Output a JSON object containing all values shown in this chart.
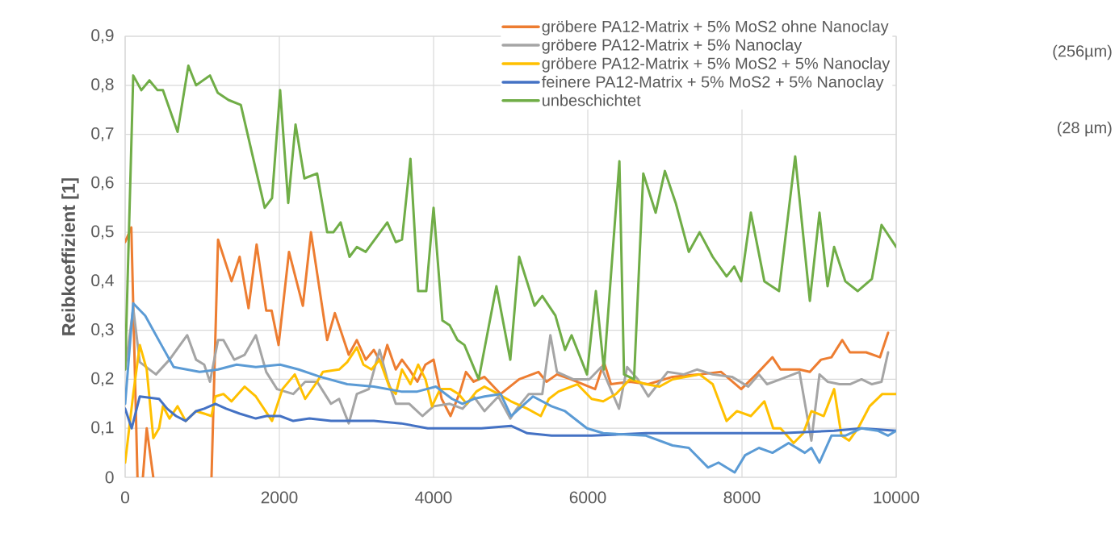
{
  "chart_data": {
    "type": "line",
    "ylabel": "Reibkoeffizient [1]",
    "xlim": [
      0,
      10000
    ],
    "xticks": [
      0,
      2000,
      4000,
      6000,
      8000,
      10000
    ],
    "ylim": [
      0,
      0.9
    ],
    "yticks": [
      {
        "value": 0,
        "label": "0"
      },
      {
        "value": 0.1,
        "label": "0,1"
      },
      {
        "value": 0.2,
        "label": "0,2"
      },
      {
        "value": 0.3,
        "label": "0,3"
      },
      {
        "value": 0.4,
        "label": "0,4"
      },
      {
        "value": 0.5,
        "label": "0,5"
      },
      {
        "value": 0.6,
        "label": "0,6"
      },
      {
        "value": 0.7,
        "label": "0,7"
      },
      {
        "value": 0.8,
        "label": "0,8"
      },
      {
        "value": 0.9,
        "label": "0,9"
      }
    ],
    "grid": true,
    "legend": "top right",
    "annotations": [
      "(256µm)",
      "(28 µm)"
    ],
    "series": [
      {
        "name": "gröbere PA12-Matrix + 5% MoS2 ohne Nanoclay",
        "color": "#ed7d31",
        "x": [
          0,
          80,
          160,
          200,
          230,
          280,
          365,
          700,
          1120,
          1205,
          1380,
          1485,
          1600,
          1705,
          1830,
          1900,
          1990,
          2125,
          2305,
          2410,
          2620,
          2720,
          2900,
          3005,
          3120,
          3225,
          3330,
          3400,
          3510,
          3590,
          3685,
          3790,
          3895,
          4000,
          4105,
          4220,
          4345,
          4420,
          4520,
          4660,
          4870,
          5110,
          5360,
          5465,
          5600,
          5780,
          6095,
          6210,
          6300,
          6545,
          6785,
          7100,
          7450,
          7730,
          7990,
          8185,
          8395,
          8500,
          8745,
          8880,
          9025,
          9160,
          9300,
          9400,
          9610,
          9790,
          9895
        ],
        "values": [
          0.48,
          0.51,
          0,
          null,
          0,
          0.1,
          0,
          null,
          0,
          0.485,
          0.4,
          0.45,
          0.345,
          0.475,
          0.34,
          0.34,
          0.27,
          0.46,
          0.35,
          0.5,
          0.28,
          0.335,
          0.25,
          0.28,
          0.24,
          0.26,
          0.23,
          0.27,
          0.22,
          0.24,
          0.22,
          0.195,
          0.23,
          0.24,
          0.16,
          0.125,
          0.175,
          0.215,
          0.195,
          0.205,
          0.17,
          0.2,
          0.215,
          0.195,
          0.21,
          0.2,
          0.18,
          0.235,
          0.19,
          0.195,
          0.19,
          0.205,
          0.21,
          0.215,
          0.18,
          0.21,
          0.245,
          0.22,
          0.22,
          0.215,
          0.24,
          0.245,
          0.28,
          0.255,
          0.255,
          0.245,
          0.295
        ]
      },
      {
        "name": "gröbere PA12-Matrix + 5% Nanoclay",
        "color": "#a5a5a5",
        "x": [
          0,
          105,
          190,
          400,
          575,
          805,
          920,
          1025,
          1100,
          1205,
          1275,
          1415,
          1550,
          1695,
          1830,
          1970,
          2180,
          2335,
          2490,
          2670,
          2775,
          2900,
          3005,
          3160,
          3300,
          3400,
          3510,
          3685,
          3855,
          4000,
          4210,
          4375,
          4520,
          4660,
          4840,
          4995,
          5080,
          5235,
          5410,
          5515,
          5600,
          5810,
          6020,
          6175,
          6405,
          6510,
          6650,
          6785,
          7035,
          7245,
          7415,
          7620,
          7870,
          8080,
          8220,
          8325,
          8500,
          8745,
          8900,
          9005,
          9110,
          9265,
          9400,
          9550,
          9685,
          9810,
          9895
        ],
        "values": [
          0.22,
          0.345,
          0.235,
          0.21,
          0.24,
          0.29,
          0.24,
          0.23,
          0.195,
          0.28,
          0.28,
          0.24,
          0.25,
          0.29,
          0.215,
          0.18,
          0.17,
          0.195,
          0.195,
          0.15,
          0.16,
          0.11,
          0.17,
          0.18,
          0.26,
          0.2,
          0.15,
          0.15,
          0.125,
          0.145,
          0.15,
          0.14,
          0.165,
          0.135,
          0.165,
          0.12,
          0.14,
          0.17,
          0.17,
          0.29,
          0.215,
          0.2,
          0.2,
          0.225,
          0.14,
          0.225,
          0.2,
          0.165,
          0.215,
          0.21,
          0.22,
          0.21,
          0.205,
          0.185,
          0.21,
          0.19,
          0.2,
          0.215,
          0.075,
          0.21,
          0.195,
          0.19,
          0.19,
          0.2,
          0.19,
          0.195,
          0.255
        ]
      },
      {
        "name": "gröbere PA12-Matrix + 5% MoS2 + 5% Nanoclay",
        "color": "#ffc000",
        "x": [
          0,
          105,
          190,
          280,
          365,
          440,
          490,
          575,
          680,
          785,
          920,
          1025,
          1120,
          1170,
          1275,
          1380,
          1550,
          1695,
          1800,
          1905,
          2040,
          2200,
          2335,
          2490,
          2565,
          2775,
          2880,
          3005,
          3090,
          3195,
          3300,
          3425,
          3510,
          3590,
          3700,
          3800,
          3895,
          3980,
          4085,
          4220,
          4325,
          4430,
          4555,
          4660,
          4840,
          5005,
          5215,
          5390,
          5495,
          5620,
          5865,
          6050,
          6200,
          6365,
          6545,
          6755,
          6930,
          7100,
          7450,
          7620,
          7800,
          7935,
          8115,
          8290,
          8405,
          8500,
          8670,
          8795,
          8900,
          9060,
          9195,
          9290,
          9390,
          9505,
          9655,
          9820,
          10000
        ],
        "values": [
          0.03,
          0.17,
          0.27,
          0.22,
          0.08,
          0.1,
          0.145,
          0.12,
          0.145,
          0.115,
          0.135,
          0.13,
          0.125,
          0.165,
          0.17,
          0.155,
          0.185,
          0.165,
          0.14,
          0.115,
          0.18,
          0.21,
          0.16,
          0.195,
          0.215,
          0.22,
          0.235,
          0.265,
          0.23,
          0.22,
          0.24,
          0.185,
          0.17,
          0.22,
          0.19,
          0.23,
          0.2,
          0.145,
          0.18,
          0.18,
          0.17,
          0.15,
          0.175,
          0.185,
          0.17,
          0.155,
          0.14,
          0.125,
          0.16,
          0.175,
          0.19,
          0.16,
          0.155,
          0.17,
          0.2,
          0.19,
          0.185,
          0.2,
          0.21,
          0.19,
          0.115,
          0.135,
          0.125,
          0.155,
          0.1,
          0.1,
          0.07,
          0.09,
          0.135,
          0.125,
          0.18,
          0.085,
          0.075,
          0.1,
          0.145,
          0.17,
          0.17
        ]
      },
      {
        "name": "feinere PA12-Matrix + 5% MoS2 + 5% Nanoclay",
        "color": "#4472c4",
        "x": [
          0,
          85,
          190,
          440,
          545,
          660,
          785,
          920,
          1025,
          1170,
          1310,
          1485,
          1695,
          1830,
          2010,
          2180,
          2390,
          2670,
          2880,
          3225,
          3580,
          3925,
          4270,
          4620,
          5005,
          5215,
          5530,
          6050,
          6755,
          7450,
          8150,
          8500,
          9195,
          9550,
          10000
        ],
        "values": [
          0.14,
          0.1,
          0.165,
          0.16,
          0.14,
          0.125,
          0.115,
          0.135,
          0.14,
          0.15,
          0.14,
          0.13,
          0.12,
          0.125,
          0.125,
          0.115,
          0.12,
          0.115,
          0.115,
          0.115,
          0.11,
          0.1,
          0.1,
          0.1,
          0.105,
          0.09,
          0.085,
          0.085,
          0.09,
          0.09,
          0.09,
          0.09,
          0.095,
          0.1,
          0.095
        ]
      },
      {
        "name": "unbeschichtet",
        "color": "#70ad47",
        "x": [
          0,
          105,
          210,
          315,
          420,
          490,
          680,
          820,
          920,
          1100,
          1200,
          1340,
          1500,
          1810,
          1905,
          2010,
          2115,
          2210,
          2325,
          2490,
          2620,
          2700,
          2795,
          2910,
          3005,
          3120,
          3400,
          3510,
          3590,
          3700,
          3800,
          3905,
          4000,
          4115,
          4210,
          4310,
          4400,
          4585,
          4815,
          4995,
          5110,
          5310,
          5410,
          5580,
          5705,
          5790,
          5990,
          6105,
          6210,
          6410,
          6470,
          6600,
          6720,
          6880,
          7000,
          7140,
          7310,
          7450,
          7620,
          7800,
          7900,
          7990,
          8115,
          8290,
          8480,
          8690,
          8880,
          9005,
          9110,
          9195,
          9340,
          9500,
          9685,
          9810,
          10000
        ],
        "values": [
          0.22,
          0.82,
          0.79,
          0.81,
          0.79,
          0.79,
          0.705,
          0.84,
          0.8,
          0.82,
          0.785,
          0.77,
          0.76,
          0.55,
          0.57,
          0.79,
          0.56,
          0.72,
          0.61,
          0.62,
          0.5,
          0.5,
          0.52,
          0.45,
          0.47,
          0.46,
          0.52,
          0.48,
          0.485,
          0.65,
          0.38,
          0.38,
          0.55,
          0.32,
          0.31,
          0.28,
          0.27,
          0.2,
          0.39,
          0.24,
          0.45,
          0.35,
          0.37,
          0.33,
          0.26,
          0.29,
          0.21,
          0.38,
          0.22,
          0.645,
          0.21,
          0.2,
          0.62,
          0.54,
          0.625,
          0.56,
          0.46,
          0.5,
          0.45,
          0.41,
          0.43,
          0.4,
          0.54,
          0.4,
          0.38,
          0.655,
          0.36,
          0.54,
          0.39,
          0.47,
          0.4,
          0.38,
          0.405,
          0.515,
          0.47
        ]
      },
      {
        "color": "#5b9bd5",
        "x": [
          0,
          105,
          260,
          470,
          630,
          965,
          1205,
          1445,
          1695,
          2010,
          2250,
          2530,
          2880,
          3225,
          3580,
          3790,
          4030,
          4240,
          4375,
          4520,
          4660,
          4870,
          5005,
          5290,
          5530,
          5705,
          5990,
          6200,
          6755,
          7100,
          7310,
          7560,
          7695,
          7905,
          8040,
          8220,
          8395,
          8605,
          8815,
          8900,
          9005,
          9160,
          9340,
          9550,
          9760,
          9895,
          10000
        ],
        "values": [
          0.15,
          0.355,
          0.33,
          0.27,
          0.225,
          0.215,
          0.22,
          0.23,
          0.225,
          0.23,
          0.22,
          0.205,
          0.19,
          0.185,
          0.175,
          0.175,
          0.185,
          0.16,
          0.15,
          0.16,
          0.165,
          0.17,
          0.125,
          0.165,
          0.145,
          0.135,
          0.1,
          0.09,
          0.085,
          0.065,
          0.06,
          0.02,
          0.03,
          0.01,
          0.045,
          0.06,
          0.05,
          0.07,
          0.05,
          0.06,
          0.03,
          0.085,
          0.085,
          0.1,
          0.095,
          0.085,
          0.095
        ]
      }
    ]
  }
}
